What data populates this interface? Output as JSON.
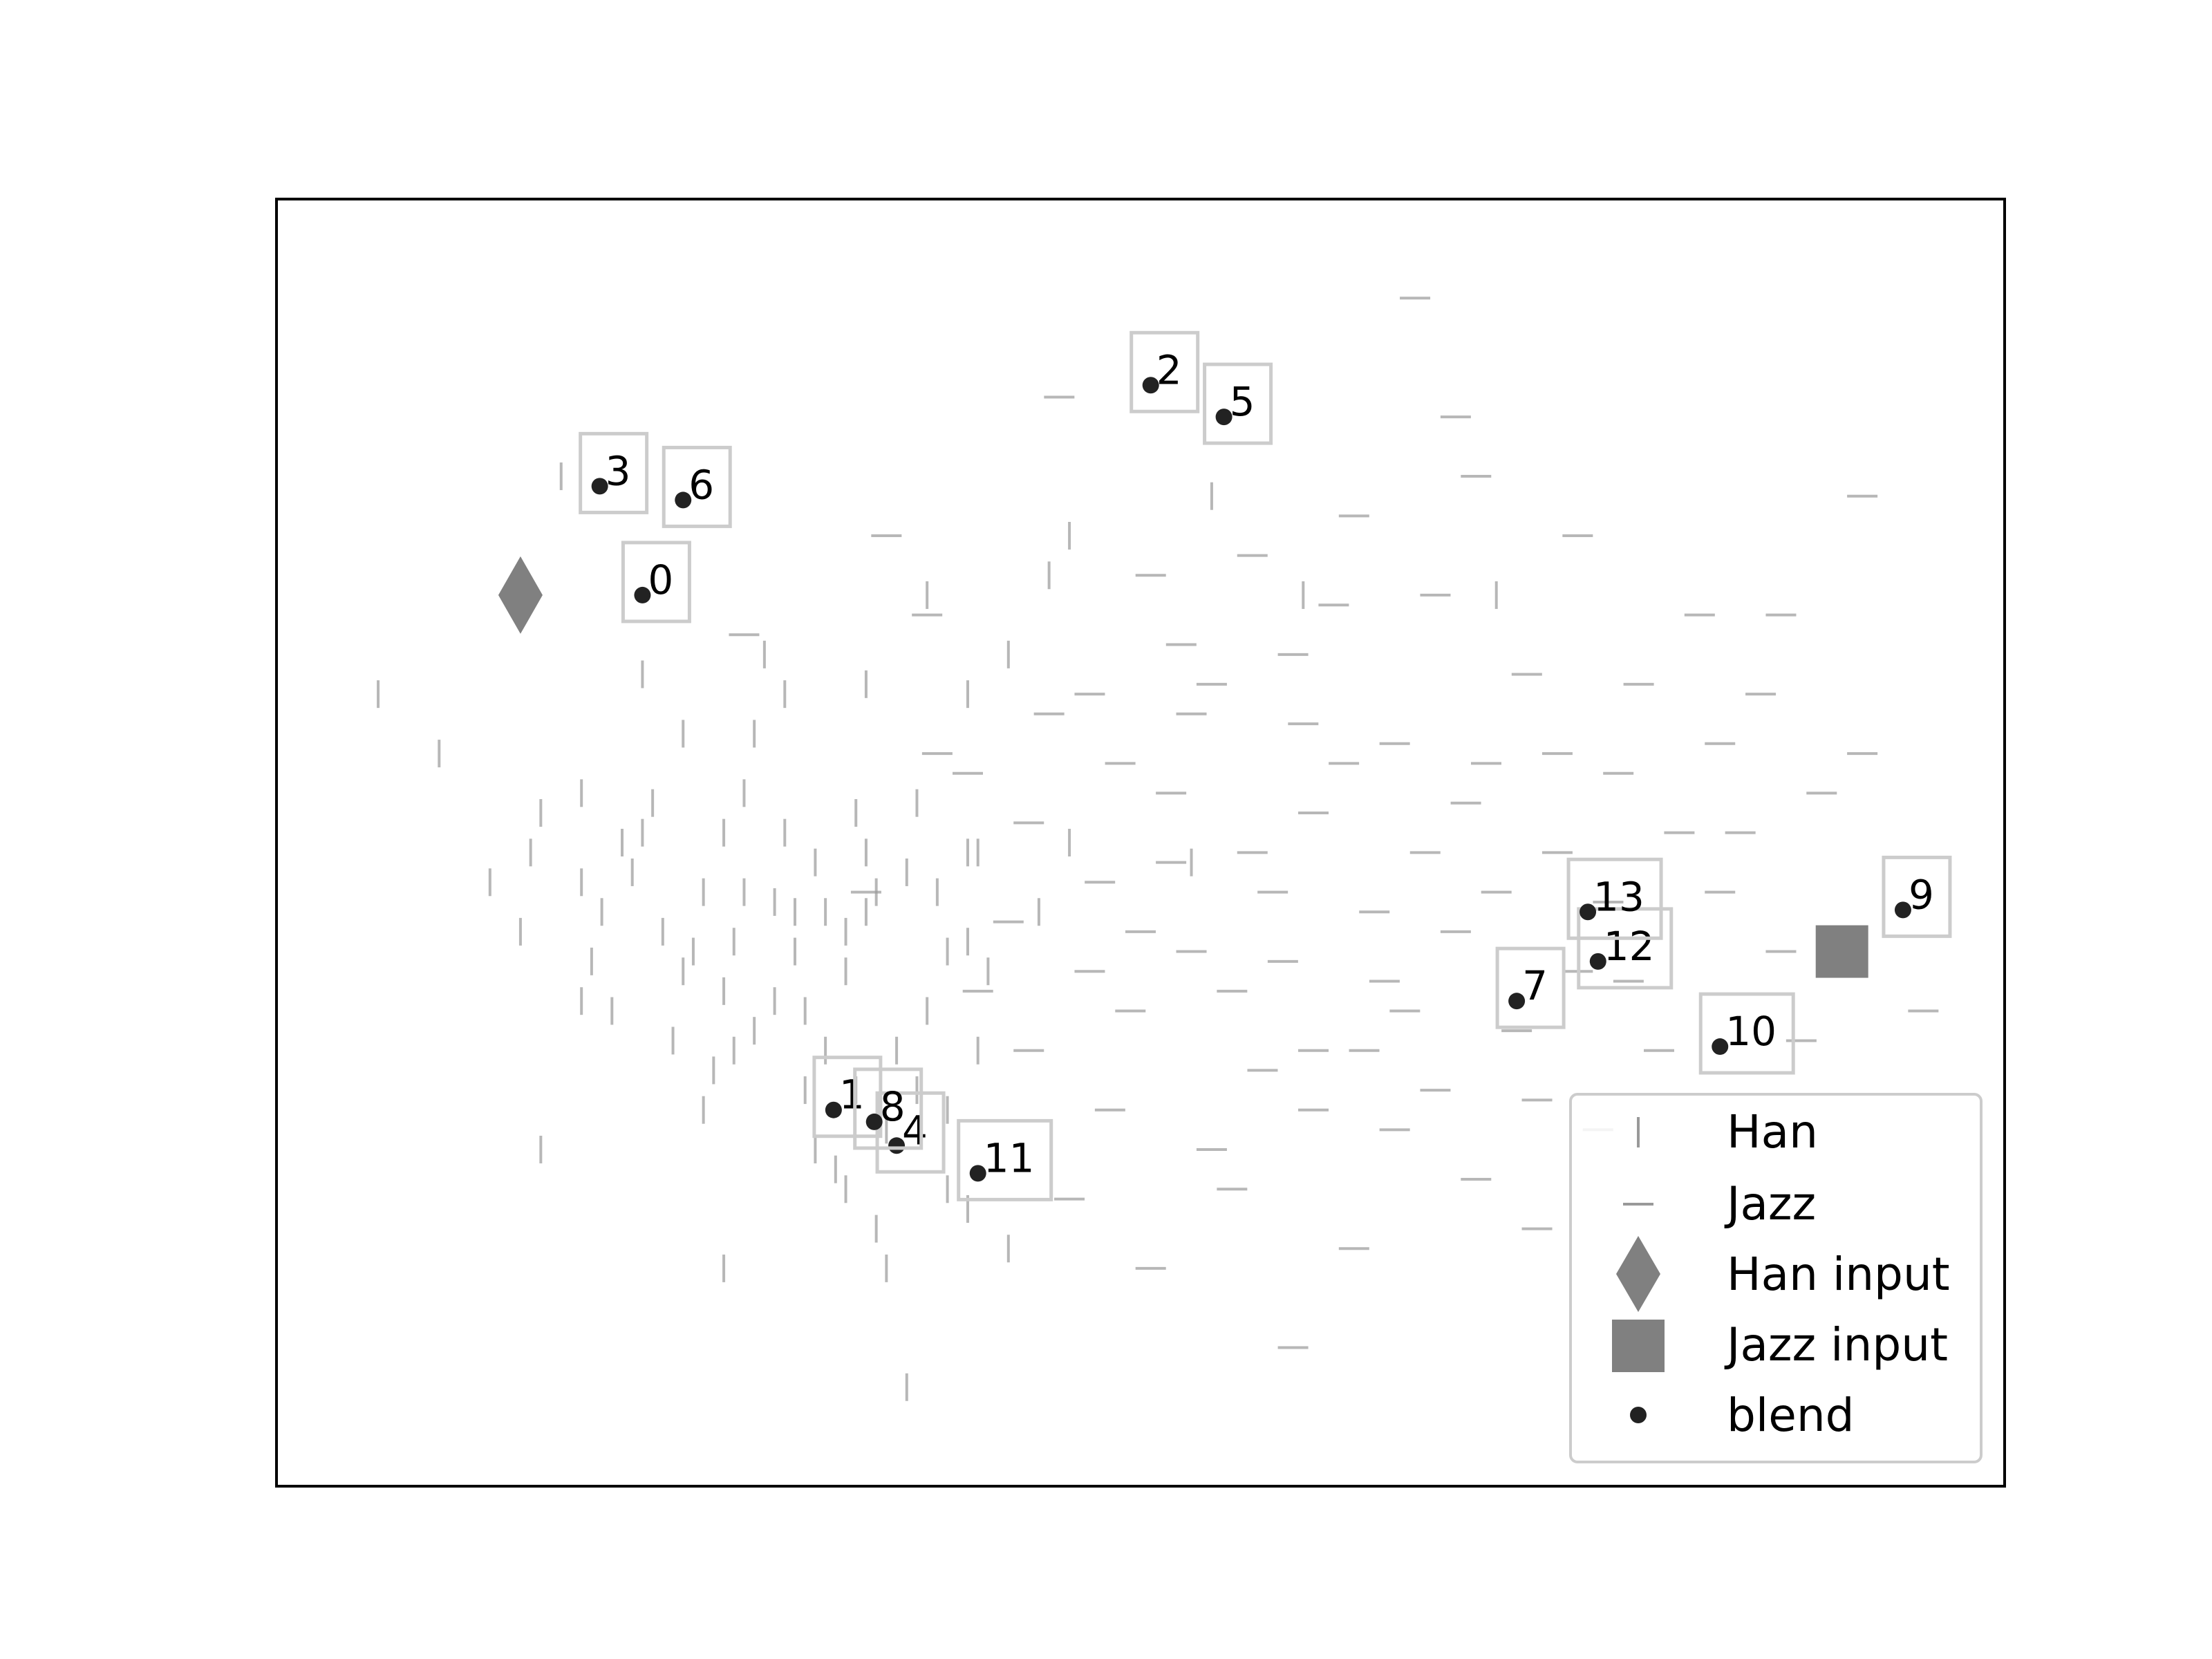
{
  "chart_data": {
    "type": "scatter",
    "xlim": [
      -3.5,
      5.0
    ],
    "ylim": [
      -3.5,
      3.0
    ],
    "grid": false,
    "legend": {
      "placement": "lower-right",
      "entries": [
        "Han",
        "Jazz",
        "Han input",
        "Jazz input",
        "blend"
      ]
    },
    "colors": {
      "han": "#999999",
      "jazz": "#999999",
      "han_input": "#808080",
      "jazz_input": "#808080",
      "blend": "#222222",
      "label_box": "#cccccc"
    },
    "han_input": {
      "x": -2.3,
      "y": 1.0
    },
    "jazz_input": {
      "x": 4.2,
      "y": -0.8
    },
    "blend": [
      {
        "label": "0",
        "x": -1.7,
        "y": 1.0
      },
      {
        "label": "1",
        "x": -0.76,
        "y": -1.6
      },
      {
        "label": "2",
        "x": 0.8,
        "y": 2.06
      },
      {
        "label": "3",
        "x": -1.91,
        "y": 1.55
      },
      {
        "label": "4",
        "x": -0.45,
        "y": -1.78
      },
      {
        "label": "5",
        "x": 1.16,
        "y": 1.9
      },
      {
        "label": "6",
        "x": -1.5,
        "y": 1.48
      },
      {
        "label": "7",
        "x": 2.6,
        "y": -1.05
      },
      {
        "label": "8",
        "x": -0.56,
        "y": -1.66
      },
      {
        "label": "9",
        "x": 4.5,
        "y": -0.59
      },
      {
        "label": "10",
        "x": 3.6,
        "y": -1.28
      },
      {
        "label": "11",
        "x": -0.05,
        "y": -1.92
      },
      {
        "label": "12",
        "x": 3.0,
        "y": -0.85
      },
      {
        "label": "13",
        "x": 2.95,
        "y": -0.6
      }
    ],
    "han_samples": [
      [
        -0.35,
        -0.05
      ],
      [
        1.0,
        -0.35
      ],
      [
        1.1,
        1.5
      ],
      [
        0.3,
        1.1
      ],
      [
        2.5,
        1.0
      ],
      [
        -1.7,
        -0.2
      ],
      [
        0.4,
        1.3
      ],
      [
        -2.2,
        -0.1
      ],
      [
        -0.1,
        0.5
      ],
      [
        -0.8,
        -0.6
      ],
      [
        -1.1,
        0.7
      ],
      [
        -0.7,
        -0.7
      ],
      [
        -0.2,
        -0.8
      ],
      [
        0.4,
        -0.25
      ],
      [
        -1.2,
        -0.5
      ],
      [
        -2.1,
        1.6
      ],
      [
        -2.2,
        -1.8
      ],
      [
        -0.95,
        -0.6
      ],
      [
        -1.8,
        -0.25
      ],
      [
        -0.1,
        -2.1
      ],
      [
        -0.1,
        -0.3
      ],
      [
        -1.5,
        -0.9
      ],
      [
        -0.6,
        0.55
      ],
      [
        -1.3,
        -2.4
      ],
      [
        -0.4,
        -3.0
      ],
      [
        -1.2,
        0.0
      ],
      [
        -2.3,
        -0.7
      ],
      [
        1.55,
        1.0
      ],
      [
        -0.4,
        -0.4
      ],
      [
        0.1,
        0.7
      ],
      [
        -0.3,
        1.0
      ],
      [
        -1.25,
        -1.3
      ],
      [
        0.0,
        -0.9
      ],
      [
        -1.4,
        -0.5
      ],
      [
        -0.6,
        -0.3
      ],
      [
        -2.25,
        -0.3
      ],
      [
        -0.8,
        -1.3
      ],
      [
        -2.7,
        0.2
      ],
      [
        -3.0,
        0.5
      ],
      [
        -2.0,
        -1.05
      ],
      [
        -0.05,
        -0.3
      ],
      [
        -0.6,
        -0.6
      ],
      [
        -1.3,
        -1.0
      ],
      [
        -1.15,
        0.3
      ],
      [
        -0.1,
        -0.75
      ],
      [
        -0.2,
        -1.6
      ],
      [
        -1.85,
        -1.1
      ],
      [
        -1.75,
        -0.4
      ],
      [
        -0.7,
        -2.0
      ],
      [
        -0.5,
        -2.4
      ],
      [
        -0.9,
        -1.5
      ],
      [
        -1.6,
        -0.7
      ],
      [
        -1.0,
        -0.2
      ],
      [
        -0.3,
        -1.1
      ],
      [
        -0.75,
        -1.9
      ],
      [
        -1.5,
        0.3
      ],
      [
        -2.0,
        0.0
      ],
      [
        -1.05,
        -1.05
      ],
      [
        -0.9,
        -1.1
      ],
      [
        -0.65,
        -0.1
      ],
      [
        -1.65,
        -0.05
      ],
      [
        -1.4,
        -1.6
      ],
      [
        -1.15,
        -1.2
      ],
      [
        -0.85,
        -1.8
      ],
      [
        -0.45,
        -1.3
      ],
      [
        -0.55,
        -2.2
      ],
      [
        -1.9,
        -0.6
      ],
      [
        -1.3,
        -0.2
      ],
      [
        -0.25,
        -0.5
      ],
      [
        -0.7,
        -0.9
      ],
      [
        -1.55,
        -1.25
      ],
      [
        -1.05,
        -0.55
      ],
      [
        -1.95,
        -0.85
      ],
      [
        -0.85,
        -0.35
      ],
      [
        -0.95,
        -0.8
      ],
      [
        -2.45,
        -0.45
      ],
      [
        -0.35,
        -1.5
      ],
      [
        0.1,
        -2.3
      ],
      [
        -1.7,
        0.6
      ],
      [
        -1.0,
        0.5
      ],
      [
        -0.5,
        -1.7
      ],
      [
        -0.2,
        -2.0
      ],
      [
        -1.45,
        -0.8
      ],
      [
        -0.55,
        -0.5
      ],
      [
        -2.0,
        -0.45
      ],
      [
        -1.25,
        -0.75
      ],
      [
        0.25,
        -0.6
      ],
      [
        -0.05,
        -1.3
      ],
      [
        -0.65,
        -1.5
      ],
      [
        -1.35,
        -1.4
      ]
    ],
    "jazz_samples": [
      [
        2.1,
        2.5
      ],
      [
        1.2,
        -1.0
      ],
      [
        -1.2,
        0.8
      ],
      [
        3.9,
        -0.8
      ],
      [
        1.0,
        0.4
      ],
      [
        2.4,
        1.6
      ],
      [
        1.6,
        -1.3
      ],
      [
        0.8,
        -2.4
      ],
      [
        2.2,
        -1.5
      ],
      [
        3.5,
        0.9
      ],
      [
        2.5,
        -0.5
      ],
      [
        0.7,
        -1.1
      ],
      [
        1.9,
        -0.6
      ],
      [
        2.0,
        -1.7
      ],
      [
        3.1,
        0.1
      ],
      [
        1.3,
        -0.3
      ],
      [
        2.8,
        0.2
      ],
      [
        4.3,
        0.2
      ],
      [
        0.5,
        -0.9
      ],
      [
        1.6,
        -1.6
      ],
      [
        2.7,
        -2.2
      ],
      [
        -0.3,
        0.9
      ],
      [
        2.2,
        1.0
      ],
      [
        3.6,
        -0.5
      ],
      [
        1.5,
        0.7
      ],
      [
        -0.1,
        0.1
      ],
      [
        0.5,
        0.5
      ],
      [
        2.3,
        -0.7
      ],
      [
        1.7,
        0.95
      ],
      [
        1.8,
        -2.3
      ],
      [
        1.0,
        -0.8
      ],
      [
        3.2,
        0.55
      ],
      [
        4.0,
        -1.25
      ],
      [
        0.9,
        0.0
      ],
      [
        1.3,
        1.2
      ],
      [
        0.2,
        -1.3
      ],
      [
        2.0,
        0.25
      ],
      [
        1.1,
        -1.8
      ],
      [
        3.4,
        -0.2
      ],
      [
        0.2,
        -0.15
      ],
      [
        4.6,
        -1.1
      ],
      [
        1.6,
        -0.1
      ],
      [
        2.9,
        1.3
      ],
      [
        3.8,
        0.5
      ],
      [
        0.6,
        -1.6
      ],
      [
        2.6,
        -1.2
      ],
      [
        0.35,
        2.0
      ],
      [
        1.5,
        -2.8
      ],
      [
        4.3,
        1.5
      ],
      [
        0.9,
        -0.35
      ],
      [
        2.9,
        -0.9
      ],
      [
        -0.5,
        1.3
      ],
      [
        1.4,
        -0.5
      ],
      [
        2.3,
        1.9
      ],
      [
        0.8,
        1.1
      ],
      [
        3.0,
        -1.7
      ],
      [
        -0.6,
        -0.5
      ],
      [
        2.8,
        -0.3
      ],
      [
        1.95,
        -0.95
      ],
      [
        0.3,
        0.4
      ],
      [
        3.3,
        -1.3
      ],
      [
        1.8,
        1.4
      ],
      [
        0.65,
        0.15
      ],
      [
        1.1,
        0.55
      ],
      [
        3.7,
        -0.2
      ],
      [
        2.4,
        -1.95
      ],
      [
        0.1,
        -0.65
      ],
      [
        1.35,
        -1.4
      ],
      [
        2.65,
        0.6
      ],
      [
        -0.05,
        -1.0
      ],
      [
        1.75,
        0.15
      ],
      [
        4.1,
        0.0
      ],
      [
        2.15,
        -0.3
      ],
      [
        3.05,
        -0.55
      ],
      [
        0.55,
        -0.45
      ],
      [
        1.55,
        0.35
      ],
      [
        2.45,
        0.15
      ],
      [
        1.2,
        -2.0
      ],
      [
        0.95,
        0.75
      ],
      [
        2.7,
        -1.55
      ],
      [
        3.6,
        0.25
      ],
      [
        0.4,
        -2.05
      ],
      [
        1.85,
        -1.3
      ],
      [
        -0.25,
        0.2
      ],
      [
        2.05,
        -1.1
      ],
      [
        3.9,
        0.9
      ],
      [
        0.75,
        -0.7
      ],
      [
        1.45,
        -0.85
      ],
      [
        2.35,
        -0.05
      ],
      [
        3.15,
        -0.95
      ]
    ]
  }
}
